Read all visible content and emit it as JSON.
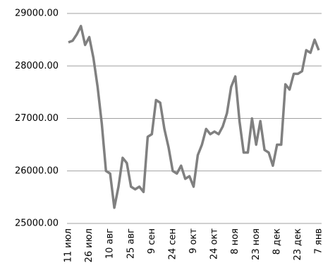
{
  "chart_data": {
    "type": "line",
    "categories": [
      "11 июл",
      null,
      null,
      null,
      null,
      "26 июл",
      null,
      null,
      null,
      null,
      "10 авг",
      null,
      null,
      null,
      null,
      "25 авг",
      null,
      null,
      null,
      null,
      "9 сен",
      null,
      null,
      null,
      null,
      "24 сен",
      null,
      null,
      null,
      null,
      "9 окт",
      null,
      null,
      null,
      null,
      "24 окт",
      null,
      null,
      null,
      null,
      "8 ноя",
      null,
      null,
      null,
      null,
      "23 ноя",
      null,
      null,
      null,
      null,
      "8 дек",
      null,
      null,
      null,
      null,
      "23 дек",
      null,
      null,
      null,
      null,
      "7 янв"
    ],
    "series": [
      {
        "color": "#808080",
        "values": [
          28450,
          28480,
          28600,
          28760,
          28400,
          28550,
          28150,
          27600,
          26900,
          26000,
          25950,
          25300,
          25700,
          26250,
          26150,
          25700,
          25650,
          25700,
          25600,
          26650,
          26700,
          27350,
          27300,
          26800,
          26450,
          26000,
          25950,
          26100,
          25850,
          25900,
          25700,
          26300,
          26500,
          26800,
          26700,
          26750,
          26700,
          26850,
          27100,
          27600,
          27800,
          26950,
          26350,
          26350,
          27000,
          26500,
          26950,
          26400,
          26350,
          26100,
          26500,
          26500,
          27650,
          27550,
          27850,
          27850,
          27900,
          28300,
          28250,
          28500,
          28300
        ]
      }
    ],
    "ylim": [
      25000,
      29000
    ],
    "yticks": [
      {
        "value": 25000,
        "label": "25000.00"
      },
      {
        "value": 26000,
        "label": "26000.00"
      },
      {
        "value": 27000,
        "label": "27000.00"
      },
      {
        "value": 28000,
        "label": "28000.00"
      },
      {
        "value": 29000,
        "label": "29000.00"
      }
    ],
    "grid": true
  }
}
